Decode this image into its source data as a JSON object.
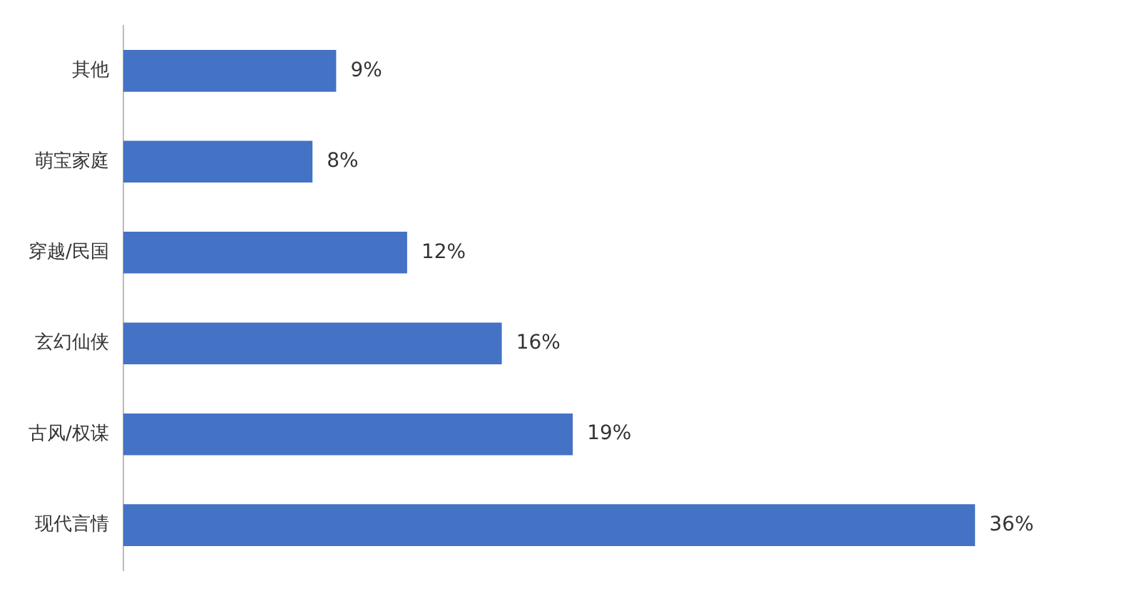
{
  "chart_data": {
    "type": "bar",
    "orientation": "horizontal",
    "categories": [
      "其他",
      "萌宝家庭",
      "穿越/民国",
      "玄幻仙侠",
      "古风/权谋",
      "现代言情"
    ],
    "values": [
      9,
      8,
      12,
      16,
      19,
      36
    ],
    "value_labels": [
      "9%",
      "8%",
      "12%",
      "16%",
      "19%",
      "36%"
    ],
    "color": "#4472c4",
    "grid": false,
    "legend": false
  }
}
